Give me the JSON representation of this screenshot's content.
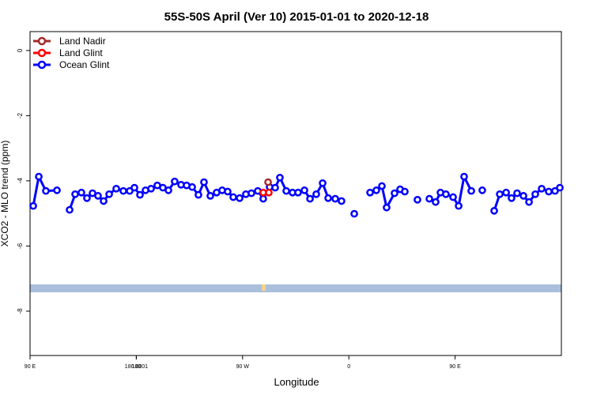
{
  "chart_data": {
    "type": "line",
    "title": "55S-50S April (Ver 10)   2015-01-01 to 2020-12-18",
    "x_label": "Longitude",
    "y_label": "XCO2 - MLO trend (ppm)",
    "xlim": [
      90,
      540
    ],
    "ylim": [
      -9.36,
      0.58
    ],
    "xticks": [
      {
        "value": 90,
        "label": "90 E"
      },
      180,
      {
        "value": 270,
        "label": "90 W"
      },
      {
        "value": 360,
        "label": "0"
      },
      {
        "value": 450,
        "label": "90 E"
      },
      180.0001
    ],
    "yticks": [
      0,
      -2,
      -4,
      -6,
      -8
    ],
    "legend_position": "top-left",
    "series": [
      {
        "name": "Land Nadir",
        "color": "#a52a2a",
        "x": [
          291.6
        ],
        "values": [
          -4.04
        ]
      },
      {
        "name": "Land Glint",
        "color": "#ff0000",
        "x": [
          287.5,
          292.2
        ],
        "values": [
          -4.36,
          -4.36
        ]
      },
      {
        "name": "Ocean Glint",
        "color": "#0000ff",
        "x": [
          92.7,
          97.4,
          103.4,
          112.8,
          118,
          123.5,
          128.2,
          133.5,
          138.2,
          142.9,
          147.6,
          152.3,
          157.0,
          163.0,
          169.0,
          174.4,
          178.4,
          183.1,
          187.8,
          192.5,
          197.8,
          202.5,
          207.2,
          212.5,
          217.9,
          222.6,
          227.3,
          232.6,
          237.3,
          242.7,
          248.0,
          252.7,
          257.4,
          262.1,
          267.5,
          272.8,
          277.5,
          282.9,
          287.5,
          292.9,
          297.6,
          301.6,
          307.0,
          312.3,
          317.0,
          322.4,
          327.1,
          332.4,
          337.8,
          342.5,
          348.5,
          353.8,
          359,
          364.6,
          371,
          378.0,
          383.3,
          388.0,
          392.0,
          398.7,
          403.4,
          407.4,
          413,
          418.1,
          423,
          428.2,
          433.5,
          437.6,
          442.2,
          448.3,
          453.0,
          457.6,
          463.7,
          468,
          473.0,
          478,
          483.1,
          487.8,
          493.2,
          497.8,
          502.5,
          507.9,
          512.6,
          517.9,
          523.3,
          529.3,
          534.6,
          538.7
        ],
        "values": [
          -4.77,
          -3.87,
          -4.31,
          -4.29,
          null,
          -4.89,
          -4.41,
          -4.36,
          -4.53,
          -4.38,
          -4.46,
          -4.62,
          -4.41,
          -4.24,
          -4.31,
          -4.31,
          -4.21,
          -4.43,
          -4.29,
          -4.24,
          -4.14,
          -4.21,
          -4.29,
          -4.02,
          -4.12,
          -4.14,
          -4.19,
          -4.43,
          -4.04,
          -4.46,
          -4.36,
          -4.29,
          -4.33,
          -4.5,
          -4.53,
          -4.41,
          -4.38,
          -4.31,
          -4.55,
          -4.19,
          -4.21,
          -3.9,
          -4.31,
          -4.36,
          -4.36,
          -4.29,
          -4.55,
          -4.41,
          -4.07,
          -4.53,
          -4.55,
          -4.62,
          null,
          -5.01,
          null,
          -4.36,
          -4.29,
          -4.16,
          -4.82,
          -4.38,
          -4.26,
          -4.33,
          null,
          -4.58,
          null,
          -4.55,
          -4.65,
          -4.36,
          -4.41,
          -4.5,
          -4.77,
          -3.87,
          -4.31,
          null,
          -4.29,
          null,
          -4.92,
          -4.41,
          -4.36,
          -4.53,
          -4.38,
          -4.46,
          -4.65,
          -4.41,
          -4.24,
          -4.33,
          -4.31,
          -4.21
        ]
      }
    ]
  }
}
